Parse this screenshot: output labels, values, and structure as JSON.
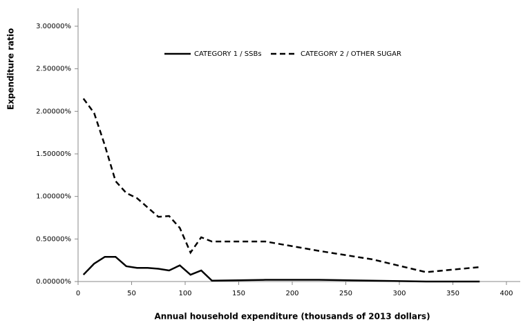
{
  "chart_data": {
    "type": "line",
    "x_label": "Annual household expenditure (thousands of 2013 dollars)",
    "y_label": "Expenditure ratio",
    "x": [
      5,
      15,
      25,
      35,
      45,
      55,
      65,
      75,
      85,
      95,
      105,
      115,
      125,
      175,
      225,
      275,
      325,
      375
    ],
    "series": [
      {
        "name": "CATEGORY 1 / SSBs",
        "color": "#000000",
        "dash": "solid",
        "values": [
          0.08,
          0.21,
          0.29,
          0.29,
          0.18,
          0.16,
          0.16,
          0.15,
          0.13,
          0.19,
          0.08,
          0.13,
          0.01,
          0.02,
          0.02,
          0.01,
          0.0,
          0.0
        ]
      },
      {
        "name": "CATEGORY 2 / OTHER SUGAR",
        "color": "#000000",
        "dash": "dashed",
        "values": [
          2.15,
          1.98,
          1.6,
          1.18,
          1.04,
          0.98,
          0.87,
          0.76,
          0.77,
          0.63,
          0.34,
          0.52,
          0.47,
          0.47,
          0.36,
          0.26,
          0.11,
          0.17
        ]
      }
    ],
    "xlim": [
      0,
      400
    ],
    "xticks": [
      0,
      50,
      100,
      150,
      200,
      250,
      300,
      350,
      400
    ],
    "ylim": [
      0,
      3
    ],
    "yticks": [
      {
        "value": 0,
        "label": "0.00000%"
      },
      {
        "value": 0.5,
        "label": "0.50000%"
      },
      {
        "value": 1,
        "label": "1.00000%"
      },
      {
        "value": 1.5,
        "label": "1.50000%"
      },
      {
        "value": 2,
        "label": "2.00000%"
      },
      {
        "value": 2.5,
        "label": "2.50000%"
      },
      {
        "value": 3,
        "label": "3.00000%"
      }
    ],
    "grid": false,
    "legend": "top"
  }
}
